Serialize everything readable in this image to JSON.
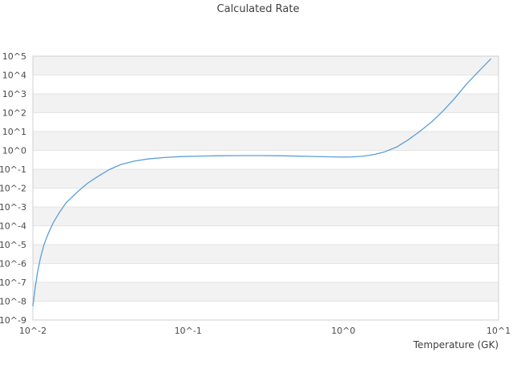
{
  "chart_data": {
    "type": "line",
    "title": "Calculated Rate",
    "xlabel": "Temperature (GK)",
    "ylabel": "",
    "x_scale": "log",
    "y_scale": "log",
    "xlim": [
      0.01,
      10
    ],
    "ylim": [
      1e-09,
      100000.0
    ],
    "grid": "horizontal decade gridlines with alternating gray/white decade bands",
    "legend_position": "none",
    "x_ticks": [
      {
        "label": "10^-2",
        "value": 0.01
      },
      {
        "label": "10^-1",
        "value": 0.1
      },
      {
        "label": "10^0",
        "value": 1
      },
      {
        "label": "10^1",
        "value": 10
      }
    ],
    "y_ticks": [
      {
        "label": "10^5",
        "value": 100000.0
      },
      {
        "label": "10^4",
        "value": 10000.0
      },
      {
        "label": "10^3",
        "value": 1000.0
      },
      {
        "label": "10^2",
        "value": 100.0
      },
      {
        "label": "10^1",
        "value": 10.0
      },
      {
        "label": "10^0",
        "value": 1
      },
      {
        "label": "10^-1",
        "value": 0.1
      },
      {
        "label": "10^-2",
        "value": 0.01
      },
      {
        "label": "10^-3",
        "value": 0.001
      },
      {
        "label": "10^-4",
        "value": 0.0001
      },
      {
        "label": "10^-5",
        "value": 1e-05
      },
      {
        "label": "10^-6",
        "value": 1e-06
      },
      {
        "label": "10^-7",
        "value": 1e-07
      },
      {
        "label": "10^-8",
        "value": 1e-08
      },
      {
        "label": "10^-9",
        "value": 1e-09
      }
    ],
    "series": [
      {
        "name": "Calculated Rate",
        "color": "#5b9fd8",
        "points": [
          [
            0.01,
            5.6e-09
          ],
          [
            0.0103,
            4e-08
          ],
          [
            0.0107,
            3.2e-07
          ],
          [
            0.0112,
            2e-06
          ],
          [
            0.0118,
            1e-05
          ],
          [
            0.0125,
            3.5e-05
          ],
          [
            0.0135,
            0.00014
          ],
          [
            0.0148,
            0.0005
          ],
          [
            0.0163,
            0.0016
          ],
          [
            0.018,
            0.0035
          ],
          [
            0.02,
            0.0079
          ],
          [
            0.0225,
            0.018
          ],
          [
            0.026,
            0.04
          ],
          [
            0.031,
            0.095
          ],
          [
            0.037,
            0.18
          ],
          [
            0.045,
            0.27
          ],
          [
            0.055,
            0.35
          ],
          [
            0.07,
            0.42
          ],
          [
            0.09,
            0.47
          ],
          [
            0.12,
            0.5
          ],
          [
            0.16,
            0.52
          ],
          [
            0.22,
            0.53
          ],
          [
            0.3,
            0.53
          ],
          [
            0.4,
            0.52
          ],
          [
            0.55,
            0.49
          ],
          [
            0.75,
            0.46
          ],
          [
            1.0,
            0.44
          ],
          [
            1.15,
            0.45
          ],
          [
            1.35,
            0.5
          ],
          [
            1.6,
            0.62
          ],
          [
            1.85,
            0.85
          ],
          [
            2.2,
            1.5
          ],
          [
            2.6,
            3.5
          ],
          [
            3.1,
            10
          ],
          [
            3.7,
            32
          ],
          [
            4.4,
            125
          ],
          [
            5.2,
            560
          ],
          [
            6.2,
            3200
          ],
          [
            7.4,
            15000.0
          ],
          [
            8.9,
            70000.0
          ]
        ]
      }
    ]
  },
  "colors": {
    "background": "#ffffff",
    "band": "#f2f2f2",
    "gridline": "#e4e4e4",
    "border": "#d0d0d0",
    "line": "#5b9fd8",
    "text": "#3f3f3f",
    "tick_text": "#4a4a4a"
  }
}
